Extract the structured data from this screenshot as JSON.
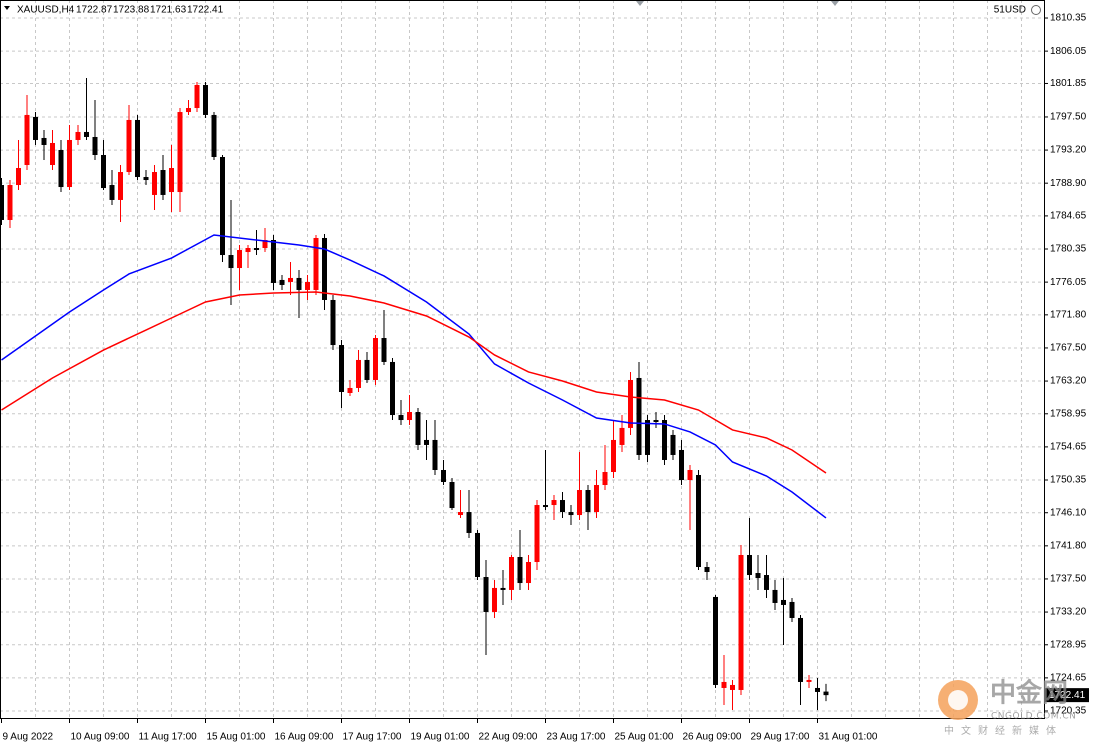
{
  "chart_data": {
    "type": "candlestick",
    "title": "XAUUSD,H4",
    "account_label": "51USD",
    "up_color": "#ff0000",
    "down_color": "#000000",
    "grid": true,
    "categories": [
      "9 Aug 2022",
      null,
      null,
      null,
      null,
      null,
      null,
      null,
      "10 Aug 09:00",
      null,
      null,
      null,
      null,
      null,
      null,
      null,
      "11 Aug 17:00",
      null,
      null,
      null,
      null,
      null,
      null,
      null,
      "15 Aug 01:00",
      null,
      null,
      null,
      null,
      null,
      null,
      null,
      "16 Aug 09:00",
      null,
      null,
      null,
      null,
      null,
      null,
      null,
      "17 Aug 17:00",
      null,
      null,
      null,
      null,
      null,
      null,
      null,
      "19 Aug 01:00",
      null,
      null,
      null,
      null,
      null,
      null,
      null,
      "22 Aug 09:00",
      null,
      null,
      null,
      null,
      null,
      null,
      null,
      "23 Aug 17:00",
      null,
      null,
      null,
      null,
      null,
      null,
      null,
      "25 Aug 01:00",
      null,
      null,
      null,
      null,
      null,
      null,
      null,
      "26 Aug 09:00",
      null,
      null,
      null,
      null,
      null,
      null,
      null,
      "29 Aug 17:00",
      null,
      null,
      null,
      null,
      null,
      null,
      null,
      "31 Aug 01:00",
      null
    ],
    "open": [
      1788.66,
      1784.12,
      1788.66,
      1791.26,
      1797.5,
      1794.77,
      1791.26,
      1793.21,
      1788.4,
      1794.51,
      1795.55,
      1794.9,
      1792.56,
      1788.66,
      1786.72,
      1790.35,
      1797.11,
      1789.7,
      1787.37,
      1790.61,
      1787.75,
      1787.75,
      1798.14,
      1798.66,
      1801.65,
      1797.76,
      1792.3,
      1779.57,
      1777.88,
      1779.96,
      1780.48,
      1780.48,
      1781.52,
      1776.33,
      1776.07,
      1776.59,
      1775.03,
      1775.03,
      1781.78,
      1773.73,
      1767.88,
      1761.65,
      1762.3,
      1765.94,
      1763.34,
      1768.79,
      1765.68,
      1758.79,
      1758.14,
      1759.18,
      1755.55,
      1755.55,
      1751.65,
      1750.09,
      1745.8,
      1746.19,
      1743.47,
      1737.75,
      1733.21,
      1736.33,
      1736.07,
      1740.35,
      1736.97,
      1739.7,
      1747.1,
      1747.1,
      1747.75,
      1746.19,
      1745.8,
      1749.05,
      1746.19,
      1749.7,
      1751.39,
      1754.9,
      1757.11,
      1763.6,
      1758.14,
      1758.14,
      1758.14,
      1756.2,
      1754.25,
      1750.35,
      1751.0,
      1739.05,
      1735.16,
      1723.34,
      1723.08,
      1723.08,
      1740.61,
      1738.27,
      1738.01,
      1736.07,
      1734.77,
      1734.51,
      1732.43,
      1724.12,
      1723.34,
      1722.87
    ],
    "high": [
      1789.57,
      1789.31,
      1794.51,
      1800.35,
      1798.14,
      1795.81,
      1795.81,
      1794.51,
      1796.46,
      1796.46,
      1802.56,
      1799.7,
      1794.51,
      1790.61,
      1791.26,
      1799.05,
      1797.76,
      1790.61,
      1791.26,
      1792.56,
      1793.86,
      1798.66,
      1799.7,
      1802.04,
      1802.04,
      1798.14,
      1792.56,
      1786.72,
      1780.87,
      1780.87,
      1782.82,
      1783.08,
      1782.17,
      1776.98,
      1778.66,
      1777.62,
      1776.98,
      1782.17,
      1782.3,
      1774.38,
      1768.53,
      1763.34,
      1767.23,
      1766.97,
      1769.18,
      1772.43,
      1766.2,
      1760.74,
      1761.39,
      1759.7,
      1758.14,
      1758.14,
      1752.95,
      1750.61,
      1749.05,
      1749.05,
      1743.86,
      1739.96,
      1737.36,
      1738.66,
      1740.61,
      1743.86,
      1740.61,
      1747.75,
      1754.25,
      1748.4,
      1748.79,
      1747.1,
      1753.99,
      1749.7,
      1751.65,
      1754.9,
      1758.14,
      1758.79,
      1764.38,
      1765.68,
      1758.79,
      1759.18,
      1758.79,
      1756.85,
      1755.55,
      1752.3,
      1751.65,
      1739.7,
      1735.42,
      1727.62,
      1724.38,
      1741.91,
      1745.42,
      1740.61,
      1740.61,
      1737.36,
      1737.62,
      1735.03,
      1732.82,
      1725.03,
      1724.64,
      1723.88
    ],
    "low": [
      1783.47,
      1783.08,
      1788.01,
      1790.61,
      1793.86,
      1791.91,
      1790.61,
      1787.75,
      1788.01,
      1793.86,
      1794.51,
      1791.91,
      1788.01,
      1786.07,
      1783.86,
      1789.96,
      1789.31,
      1788.66,
      1785.42,
      1786.72,
      1785.16,
      1785.16,
      1797.76,
      1798.14,
      1797.37,
      1791.91,
      1778.66,
      1773.08,
      1775.03,
      1777.88,
      1779.57,
      1779.96,
      1775.03,
      1775.03,
      1774.38,
      1771.39,
      1773.73,
      1774.38,
      1772.43,
      1767.23,
      1759.7,
      1761.26,
      1761.78,
      1762.95,
      1762.69,
      1765.29,
      1758.14,
      1757.5,
      1757.5,
      1754.25,
      1752.95,
      1751.0,
      1749.7,
      1746.45,
      1745.42,
      1742.82,
      1737.36,
      1727.62,
      1732.43,
      1734.12,
      1734.77,
      1736.07,
      1736.07,
      1738.66,
      1746.45,
      1745.16,
      1745.42,
      1744.51,
      1745.16,
      1743.86,
      1745.42,
      1749.05,
      1750.61,
      1753.99,
      1756.2,
      1752.95,
      1752.69,
      1757.11,
      1752.3,
      1752.95,
      1749.7,
      1743.86,
      1738.66,
      1737.36,
      1723.34,
      1721.13,
      1720.48,
      1722.43,
      1737.36,
      1736.07,
      1735.03,
      1733.47,
      1728.92,
      1731.91,
      1721.13,
      1723.34,
      1720.48,
      1721.63
    ],
    "close": [
      1784.12,
      1788.66,
      1790.87,
      1797.76,
      1794.51,
      1793.86,
      1794.12,
      1788.4,
      1794.51,
      1795.55,
      1794.9,
      1792.56,
      1788.27,
      1786.72,
      1790.35,
      1797.11,
      1789.7,
      1789.31,
      1790.35,
      1787.37,
      1790.87,
      1798.14,
      1798.66,
      1801.65,
      1797.76,
      1792.3,
      1779.57,
      1777.88,
      1780.22,
      1780.48,
      1780.22,
      1781.52,
      1775.94,
      1775.68,
      1776.59,
      1775.03,
      1776.07,
      1781.78,
      1773.73,
      1767.88,
      1761.78,
      1762.3,
      1765.94,
      1763.34,
      1768.79,
      1765.68,
      1758.79,
      1758.14,
      1759.18,
      1754.9,
      1754.9,
      1751.65,
      1750.09,
      1746.71,
      1746.19,
      1743.47,
      1737.75,
      1733.21,
      1736.33,
      1736.07,
      1740.35,
      1736.97,
      1739.7,
      1747.1,
      1746.84,
      1747.75,
      1746.19,
      1745.8,
      1749.05,
      1746.19,
      1749.7,
      1751.39,
      1755.55,
      1757.11,
      1763.34,
      1753.6,
      1753.6,
      1757.88,
      1752.95,
      1753.6,
      1750.35,
      1751.65,
      1739.05,
      1738.4,
      1723.73,
      1724.12,
      1723.73,
      1740.61,
      1738.01,
      1737.62,
      1736.07,
      1734.38,
      1734.12,
      1732.43,
      1724.12,
      1724.38,
      1722.82,
      1722.41
    ],
    "series": [
      {
        "color": "#0000ff",
        "x": [
          0,
          8,
          12,
          15,
          20,
          25,
          30,
          35,
          38,
          41,
          45,
          50,
          55,
          58,
          62,
          66,
          70,
          74,
          78,
          81,
          84,
          86,
          90,
          93,
          97
        ],
        "values": [
          1765.94,
          1772.17,
          1775.03,
          1777.11,
          1779.18,
          1782.17,
          1781.52,
          1780.87,
          1780.35,
          1778.92,
          1776.85,
          1773.47,
          1769.31,
          1765.42,
          1762.95,
          1760.74,
          1758.4,
          1757.76,
          1757.63,
          1756.59,
          1754.9,
          1752.69,
          1750.87,
          1748.79,
          1745.42
        ]
      },
      {
        "color": "#ff0000",
        "x": [
          0,
          6,
          12,
          17,
          20,
          24,
          28,
          32,
          37,
          41,
          45,
          50,
          55,
          58,
          62,
          66,
          70,
          74,
          78,
          82,
          86,
          90,
          93,
          97
        ],
        "values": [
          1759.44,
          1763.6,
          1767.23,
          1769.83,
          1771.39,
          1773.47,
          1774.38,
          1774.64,
          1774.77,
          1774.25,
          1773.34,
          1771.65,
          1768.92,
          1766.59,
          1764.38,
          1763.21,
          1761.78,
          1761.13,
          1760.74,
          1759.44,
          1756.85,
          1755.81,
          1754.25,
          1751.26
        ]
      }
    ],
    "ylim": [
      1719.44,
      1812.69
    ],
    "yticks": [
      1810.35,
      1806.05,
      1801.85,
      {
        "value": 1797.5,
        "label": "1797.50"
      },
      {
        "value": 1793.2,
        "label": "1793.20"
      },
      {
        "value": 1788.9,
        "label": "1788.90"
      },
      1784.65,
      1780.35,
      1776.05,
      {
        "value": 1771.8,
        "label": "1771.80"
      },
      {
        "value": 1767.5,
        "label": "1767.50"
      },
      {
        "value": 1763.2,
        "label": "1763.20"
      },
      1758.95,
      1754.65,
      1750.35,
      {
        "value": 1746.1,
        "label": "1746.10"
      },
      {
        "value": 1741.8,
        "label": "1741.80"
      },
      {
        "value": 1737.5,
        "label": "1737.50"
      },
      {
        "value": 1733.2,
        "label": "1733.20"
      },
      1728.95,
      1724.65,
      1720.35
    ]
  },
  "watermark": {
    "name": "中金网",
    "site": "CNGOLD.COM.CN",
    "tagline": "中文财经新媒体"
  }
}
